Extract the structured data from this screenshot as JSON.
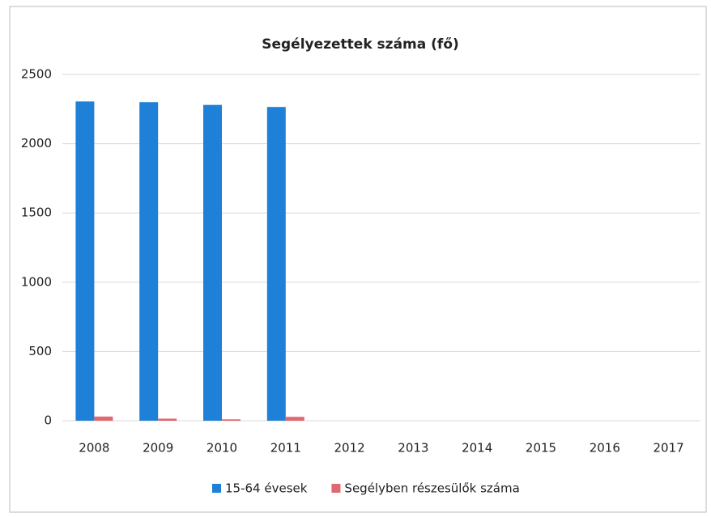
{
  "chart_data": {
    "type": "bar",
    "title": "Segélyezettek száma (fő)",
    "categories": [
      "2008",
      "2009",
      "2010",
      "2011",
      "2012",
      "2013",
      "2014",
      "2015",
      "2016",
      "2017"
    ],
    "series": [
      {
        "name": "15-64 évesek",
        "color": "#1f80d8",
        "values": [
          2305,
          2300,
          2280,
          2265,
          null,
          null,
          null,
          null,
          null,
          null
        ]
      },
      {
        "name": "Segélyben részesülők száma",
        "color": "#e06870",
        "values": [
          30,
          15,
          10,
          28,
          null,
          null,
          null,
          null,
          null,
          null
        ]
      }
    ],
    "ylim": [
      0,
      2500
    ],
    "yticks": [
      0,
      500,
      1000,
      1500,
      2000,
      2500
    ],
    "grid": true,
    "legend": "bottom"
  }
}
